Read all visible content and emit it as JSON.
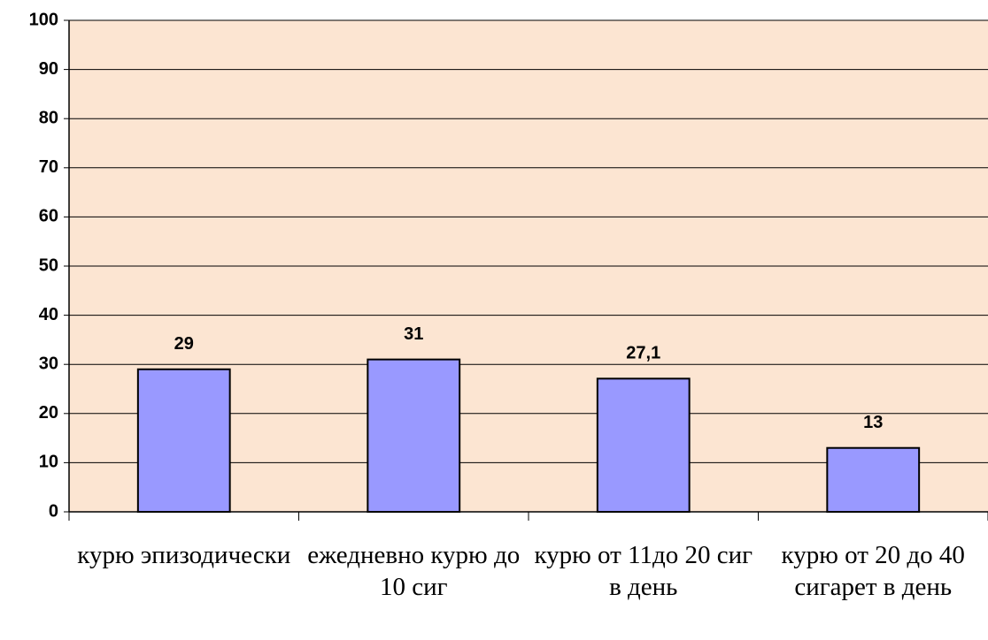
{
  "chart_data": {
    "type": "bar",
    "categories": [
      "курю эпизодически",
      "ежедневно курю до 10 сиг",
      "курю от 11до 20 сиг в день",
      "курю от 20 до 40 сигарет в день"
    ],
    "values": [
      29,
      31,
      27.1,
      13
    ],
    "value_labels": [
      "29",
      "31",
      "27,1",
      "13"
    ],
    "color": "#9999ff",
    "ylim": [
      0,
      100
    ],
    "yticks": [
      0,
      10,
      20,
      30,
      40,
      50,
      60,
      70,
      80,
      90,
      100
    ],
    "grid": true
  }
}
